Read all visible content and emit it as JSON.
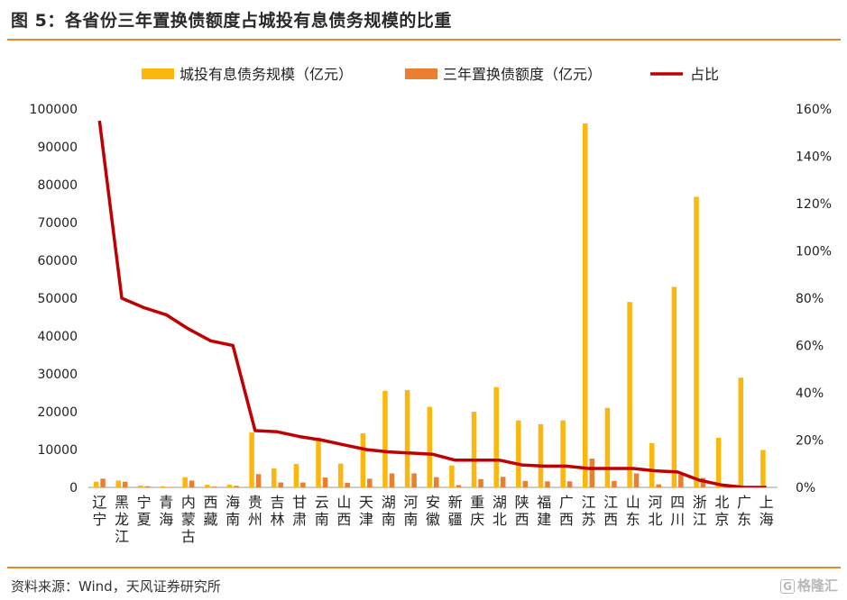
{
  "header": {
    "title": "图 5：各省份三年置换债额度占城投有息债务规模的比重"
  },
  "footer": {
    "source": "资料来源：Wind，天风证券研究所",
    "watermark": "格隆汇"
  },
  "colors": {
    "debt": "#fcb70d",
    "replace": "#ea7f31",
    "ratio": "#c00000",
    "rule": "#e8862e"
  },
  "chart_data": {
    "type": "bar",
    "categories": [
      "辽宁",
      "黑龙江",
      "宁夏",
      "青海",
      "内蒙古",
      "西藏",
      "海南",
      "贵州",
      "吉林",
      "甘肃",
      "云南",
      "山西",
      "天津",
      "湖南",
      "河南",
      "安徽",
      "新疆",
      "重庆",
      "湖北",
      "陕西",
      "福建",
      "广西",
      "江苏",
      "江西",
      "山东",
      "河北",
      "四川",
      "浙江",
      "北京",
      "广东",
      "上海"
    ],
    "series": [
      {
        "name": "城投有息债务规模（亿元）",
        "type": "bar",
        "axis": "left",
        "values": [
          1500,
          1800,
          500,
          300,
          2700,
          700,
          700,
          14500,
          5000,
          6200,
          13200,
          6300,
          14300,
          25500,
          25700,
          21300,
          5800,
          20000,
          26500,
          17700,
          16700,
          17700,
          96200,
          21000,
          49000,
          11700,
          53000,
          76800,
          13100,
          29000,
          9900
        ]
      },
      {
        "name": "三年置换债额度（亿元）",
        "type": "bar",
        "axis": "left",
        "values": [
          2300,
          1500,
          300,
          100,
          1800,
          200,
          400,
          3500,
          1300,
          1300,
          2600,
          1200,
          2300,
          3700,
          3700,
          2700,
          600,
          2200,
          2800,
          1700,
          1600,
          1600,
          7600,
          1700,
          3700,
          800,
          3400,
          2500,
          100,
          0,
          0
        ]
      },
      {
        "name": "占比",
        "type": "line",
        "axis": "right",
        "values": [
          155,
          80,
          76,
          73,
          67,
          62,
          60,
          24,
          23.5,
          21.5,
          20,
          18,
          16,
          15,
          14.5,
          14,
          11.5,
          11.5,
          11.5,
          9.5,
          9,
          9,
          8,
          8,
          8,
          7,
          6.5,
          3,
          1,
          0,
          0
        ]
      }
    ],
    "y_left": {
      "range": [
        0,
        100000
      ],
      "ticks": [
        "0",
        "10000",
        "20000",
        "30000",
        "40000",
        "50000",
        "60000",
        "70000",
        "80000",
        "90000",
        "100000"
      ]
    },
    "y_right": {
      "range": [
        0,
        160
      ],
      "ticks": [
        "0%",
        "20%",
        "40%",
        "60%",
        "80%",
        "100%",
        "120%",
        "140%",
        "160%"
      ]
    },
    "grid": false,
    "legend_position": "top"
  }
}
